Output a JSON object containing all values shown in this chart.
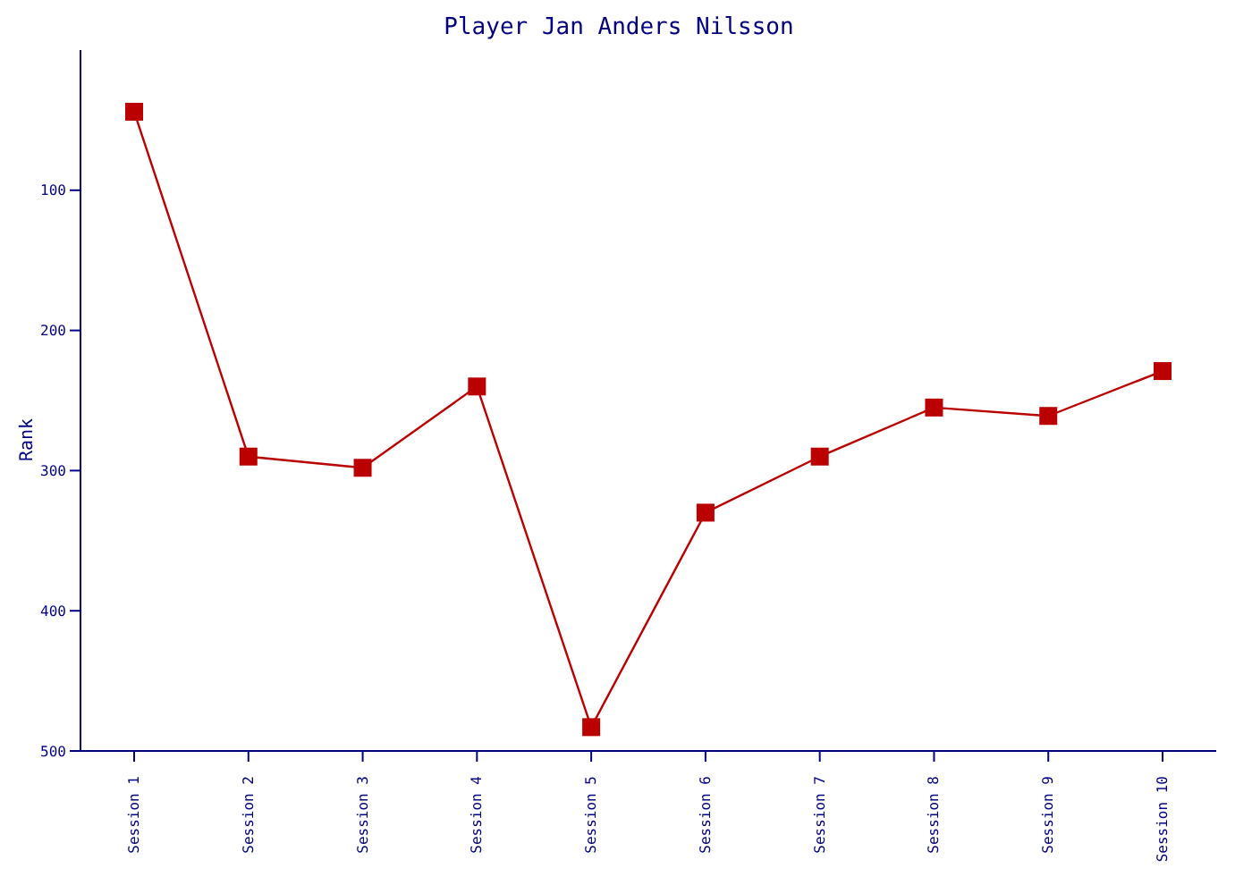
{
  "chart_data": {
    "type": "line",
    "title": "Player Jan Anders Nilsson",
    "ylabel": "Rank",
    "categories": [
      "Session 1",
      "Session 2",
      "Session 3",
      "Session 4",
      "Session 5",
      "Session 6",
      "Session 7",
      "Session 8",
      "Session 9",
      "Session 10"
    ],
    "series": [
      {
        "color": "#bb0000",
        "values": [
          44,
          290,
          298,
          240,
          483,
          330,
          290,
          255,
          261,
          229
        ]
      }
    ],
    "ylim": [
      500,
      0
    ],
    "yticks": [
      100,
      200,
      300,
      400,
      500
    ],
    "marker": "square",
    "line_style": "solid",
    "grid": false,
    "legend": false
  }
}
